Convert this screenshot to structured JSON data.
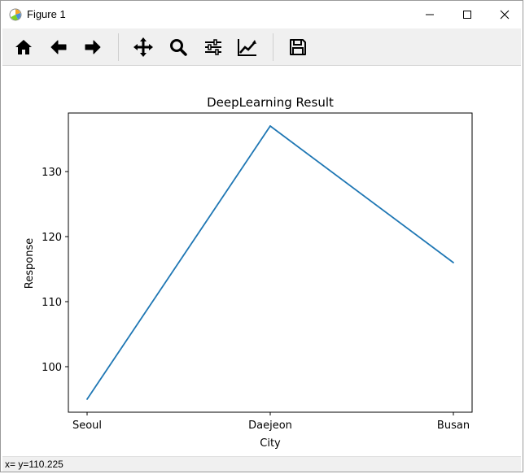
{
  "window": {
    "title": "Figure 1",
    "controls": [
      "minimize",
      "maximize",
      "close"
    ]
  },
  "toolbar": {
    "buttons": [
      {
        "name": "home",
        "icon": "home-icon"
      },
      {
        "name": "back",
        "icon": "arrow-left-icon"
      },
      {
        "name": "forward",
        "icon": "arrow-right-icon"
      },
      {
        "name": "pan",
        "icon": "move-icon"
      },
      {
        "name": "zoom",
        "icon": "magnifier-icon"
      },
      {
        "name": "configure-subplots",
        "icon": "sliders-icon"
      },
      {
        "name": "edit-axes",
        "icon": "line-chart-icon"
      },
      {
        "name": "save",
        "icon": "floppy-disk-icon"
      }
    ]
  },
  "status": {
    "coords": "x= y=110.225"
  },
  "colors": {
    "line": "#1f77b4",
    "toolbar_bg": "#f0f0f0"
  },
  "chart_data": {
    "type": "line",
    "title": "DeepLearning Result",
    "xlabel": "City",
    "ylabel": "Response",
    "categories": [
      "Seoul",
      "Daejeon",
      "Busan"
    ],
    "values": [
      95,
      137,
      116
    ],
    "ylim": [
      93,
      139
    ],
    "yticks": [
      100,
      110,
      120,
      130
    ],
    "grid": false
  }
}
